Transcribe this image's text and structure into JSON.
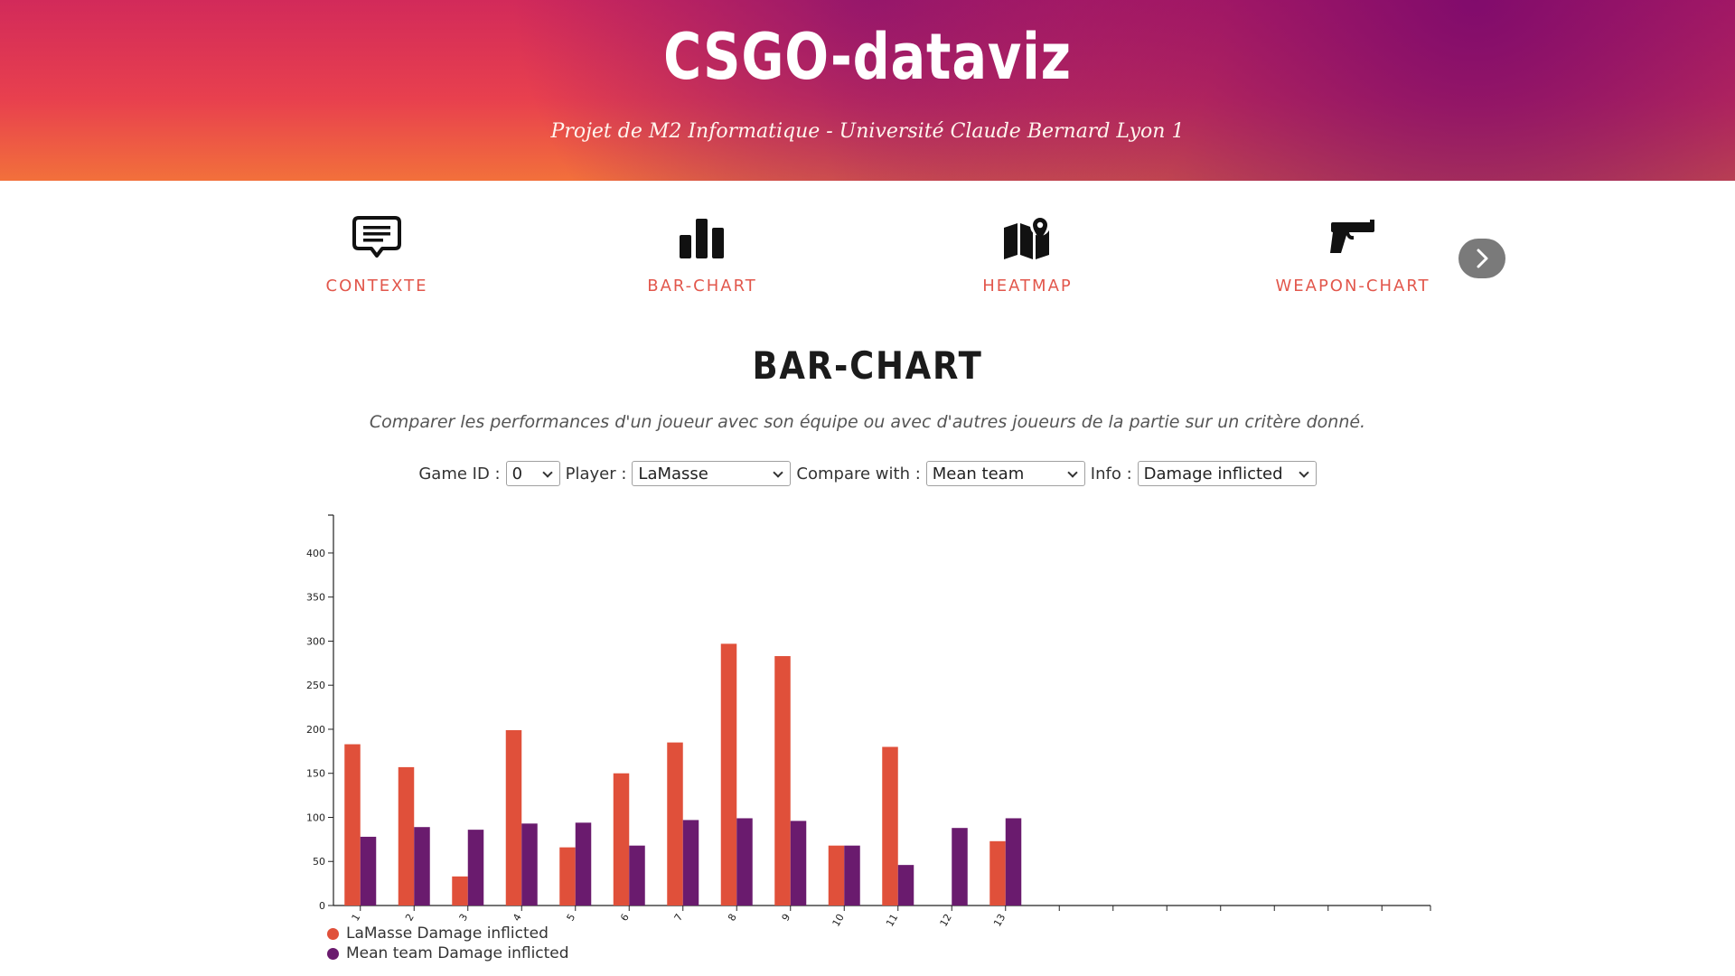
{
  "header": {
    "title": "CSGO-dataviz",
    "subtitle": "Projet de M2 Informatique - Université Claude Bernard Lyon 1"
  },
  "nav": {
    "items": [
      {
        "label": "CONTEXTE",
        "icon": "message-icon"
      },
      {
        "label": "BAR-CHART",
        "icon": "bar-chart-icon"
      },
      {
        "label": "HEATMAP",
        "icon": "map-pin-icon"
      },
      {
        "label": "WEAPON-CHART",
        "icon": "pistol-icon"
      }
    ],
    "next_icon": "chevron-right-icon"
  },
  "section": {
    "title": "BAR-CHART",
    "description": "Comparer les performances d'un joueur avec son équipe ou avec d'autres joueurs de la partie sur un critère donné."
  },
  "controls": {
    "game_id_label": "Game ID :",
    "game_id_value": "0",
    "player_label": "Player :",
    "player_value": "LaMasse",
    "compare_label": "Compare with :",
    "compare_value": "Mean team",
    "info_label": "Info :",
    "info_value": "Damage inflicted"
  },
  "colors": {
    "accent": "#e2574c",
    "series_player": "#e0503a",
    "series_team": "#6a1b6e"
  },
  "chart_data": {
    "type": "bar",
    "categories": [
      "1",
      "2",
      "3",
      "4",
      "5",
      "6",
      "7",
      "8",
      "9",
      "10",
      "11",
      "12",
      "13"
    ],
    "series": [
      {
        "name": "LaMasse Damage inflicted",
        "values": [
          183,
          157,
          33,
          199,
          66,
          150,
          185,
          297,
          283,
          68,
          180,
          0,
          73
        ],
        "color": "#e0503a"
      },
      {
        "name": "Mean team Damage inflicted",
        "values": [
          78,
          89,
          86,
          93,
          94,
          68,
          97,
          99,
          96,
          68,
          46,
          88,
          99
        ],
        "color": "#6a1b6e"
      }
    ],
    "ylim": [
      0,
      443
    ],
    "yticks": [
      0,
      50,
      100,
      150,
      200,
      250,
      300,
      350,
      400
    ],
    "xaxis_extra_ticks": 7,
    "legend": "bottom-left",
    "grid": false
  }
}
